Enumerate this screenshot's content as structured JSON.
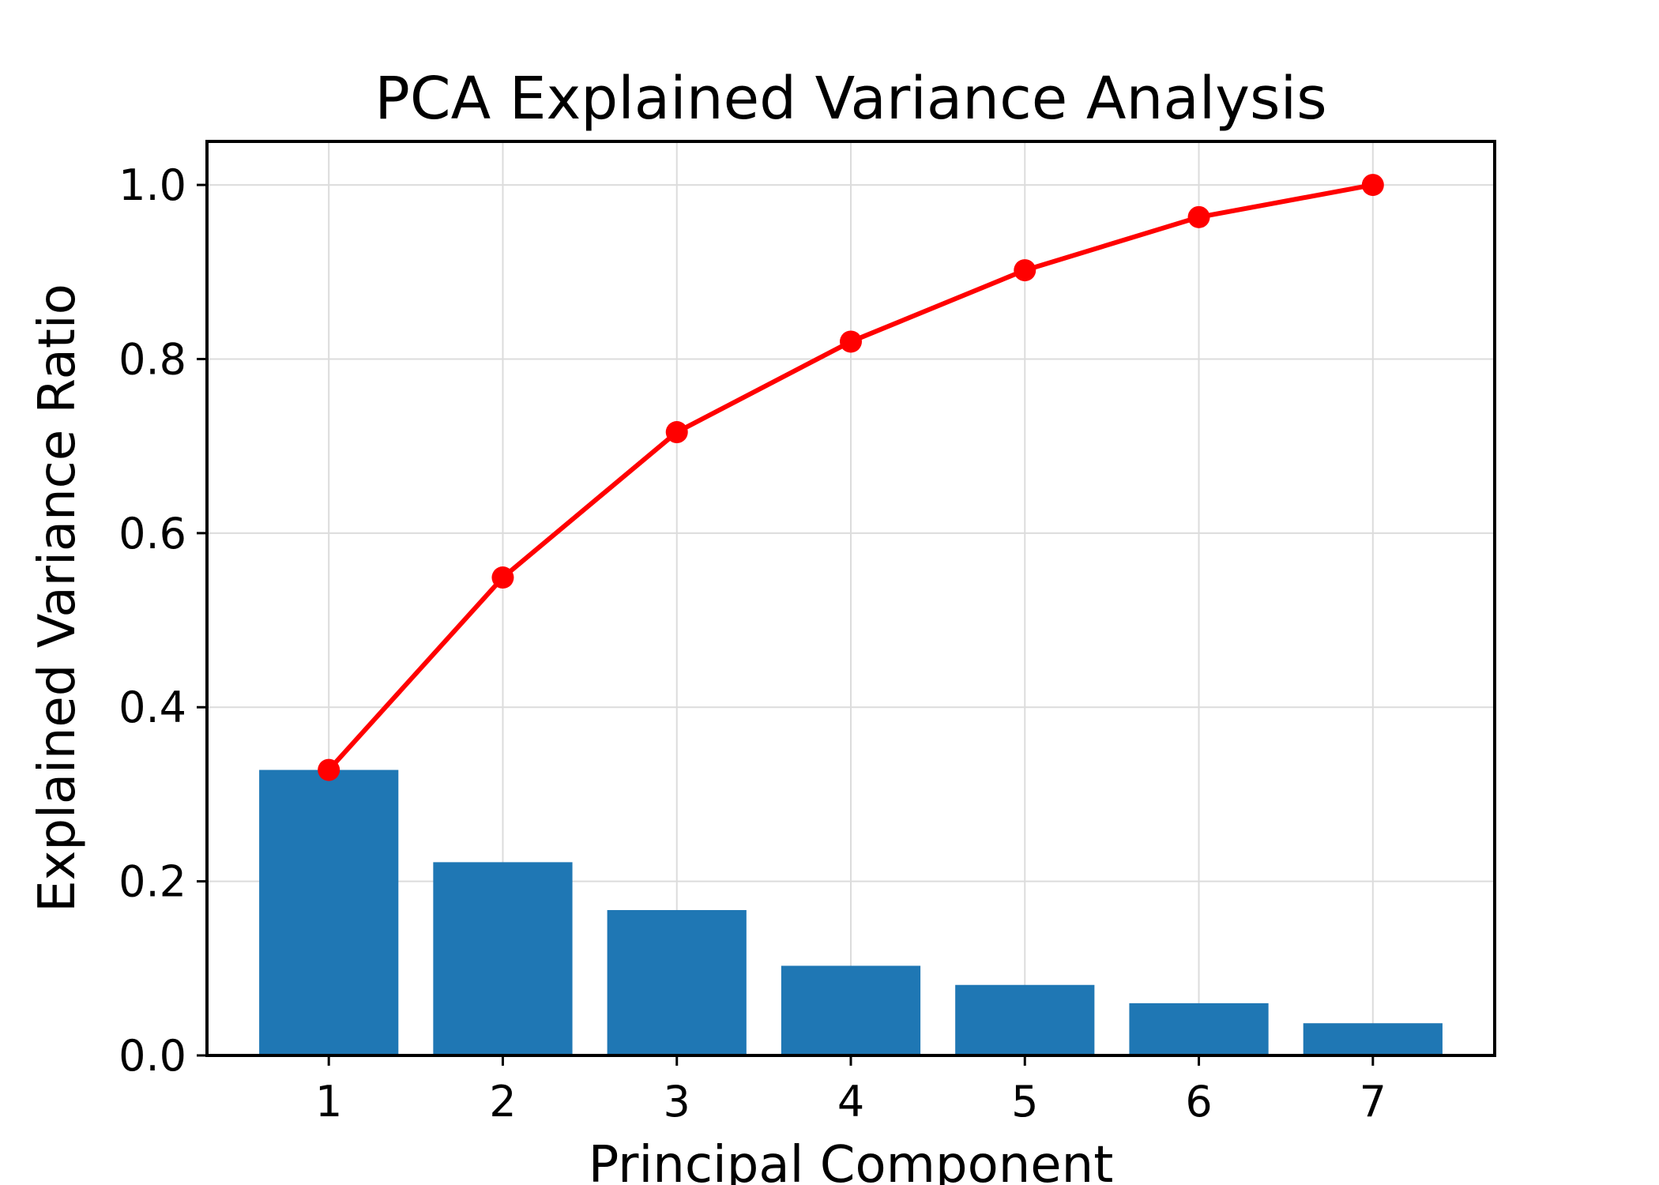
{
  "chart_data": {
    "type": "bar",
    "title": "PCA Explained Variance Analysis",
    "xlabel": "Principal Component",
    "ylabel": "Explained Variance Ratio",
    "categories": [
      "1",
      "2",
      "3",
      "4",
      "5",
      "6",
      "7"
    ],
    "x": [
      1,
      2,
      3,
      4,
      5,
      6,
      7
    ],
    "xlim": [
      0.3,
      7.7
    ],
    "ylim": [
      0.0,
      1.05
    ],
    "yticks": [
      0.0,
      0.2,
      0.4,
      0.6,
      0.8,
      1.0
    ],
    "ytick_labels": [
      "0.0",
      "0.2",
      "0.4",
      "0.6",
      "0.8",
      "1.0"
    ],
    "grid": true,
    "series": [
      {
        "type": "bar",
        "values": [
          0.328,
          0.222,
          0.167,
          0.103,
          0.081,
          0.06,
          0.037
        ],
        "color": "#1f77b4"
      },
      {
        "type": "line",
        "values": [
          0.328,
          0.549,
          0.716,
          0.82,
          0.902,
          0.963,
          1.0
        ],
        "color": "#ff0000",
        "marker": "circle"
      }
    ]
  }
}
